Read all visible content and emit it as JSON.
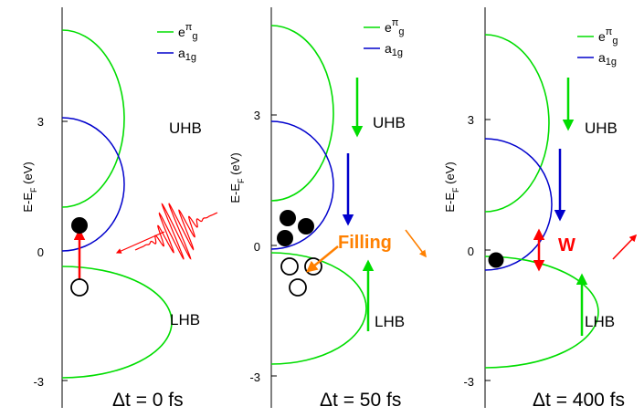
{
  "legend": {
    "eg_base": "e",
    "eg_sup": "π",
    "eg_sub": "g",
    "a1g_base": "a",
    "a1g_sub": "1g"
  },
  "y_axis_label": {
    "pre": "E-E",
    "sub": "F",
    "post": " (eV)"
  },
  "colors": {
    "eg": "#00dd00",
    "a1g": "#0000cc",
    "electron": "#000000",
    "excitation_arrow": "#ff0000",
    "filling": "#ff8000",
    "green_arrow": "#00dd00",
    "blue_arrow": "#0000cc",
    "w_arrow": "#ff0000"
  },
  "panels": [
    {
      "id": "t0",
      "caption": "Δt = 0 fs",
      "ticks": [
        "3",
        "0",
        "-3"
      ],
      "uhb": "UHB",
      "lhb": "LHB"
    },
    {
      "id": "t50",
      "caption": "Δt = 50 fs",
      "ticks": [
        "3",
        "0",
        "-3"
      ],
      "uhb": "UHB",
      "lhb": "LHB",
      "filling_label": "Filling"
    },
    {
      "id": "t400",
      "caption": "Δt = 400 fs",
      "ticks": [
        "3",
        "0",
        "-3"
      ],
      "uhb": "UHB",
      "lhb": "LHB",
      "w_label": "W"
    }
  ]
}
